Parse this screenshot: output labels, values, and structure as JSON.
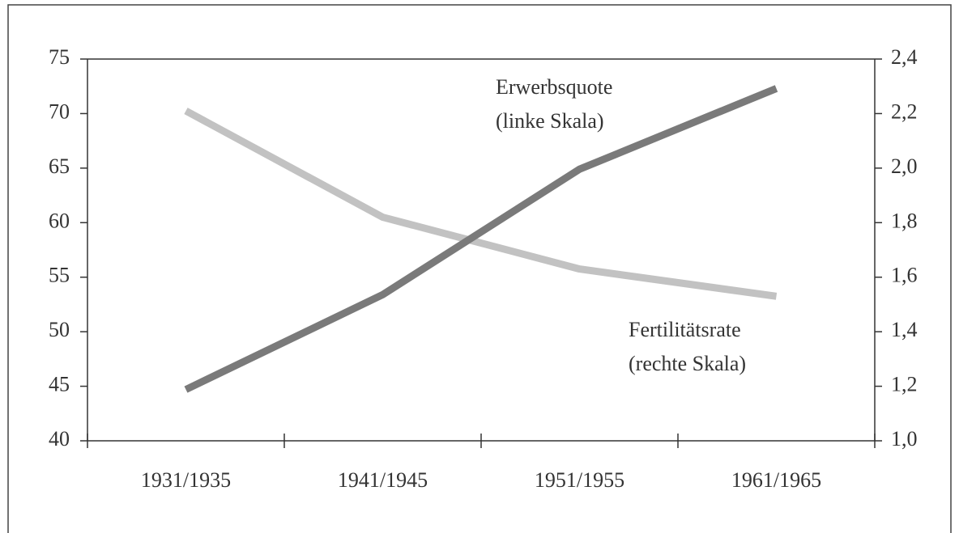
{
  "chart_data": {
    "type": "line",
    "categories": [
      "1931/1935",
      "1941/1945",
      "1951/1955",
      "1961/1965"
    ],
    "series": [
      {
        "name": "Erwerbsquote",
        "color": "#7a7a7a",
        "values": [
          44.7,
          53.4,
          64.9,
          72.3
        ]
      },
      {
        "name": "Fertilitätsrate",
        "color": "#c2c2c2",
        "axis": "y2",
        "values": [
          2.21,
          1.82,
          1.63,
          1.53
        ]
      }
    ],
    "annotations": [
      {
        "lines": [
          "Erwerbsquote",
          "(linke Skala)"
        ]
      },
      {
        "lines": [
          "Fertilitätsrate",
          "(rechte Skala)"
        ]
      }
    ],
    "ylim": [
      40,
      75
    ],
    "yticks": [
      40,
      45,
      50,
      55,
      60,
      65,
      70,
      75
    ],
    "y2lim": [
      1.0,
      2.4
    ],
    "y2ticks": [
      {
        "value": 1.0,
        "label": "1,0"
      },
      {
        "value": 1.2,
        "label": "1,2"
      },
      {
        "value": 1.4,
        "label": "1,4"
      },
      {
        "value": 1.6,
        "label": "1,6"
      },
      {
        "value": 1.8,
        "label": "1,8"
      },
      {
        "value": 2.0,
        "label": "2,0"
      },
      {
        "value": 2.2,
        "label": "2,2"
      },
      {
        "value": 2.4,
        "label": "2,4"
      }
    ],
    "grid": false
  }
}
